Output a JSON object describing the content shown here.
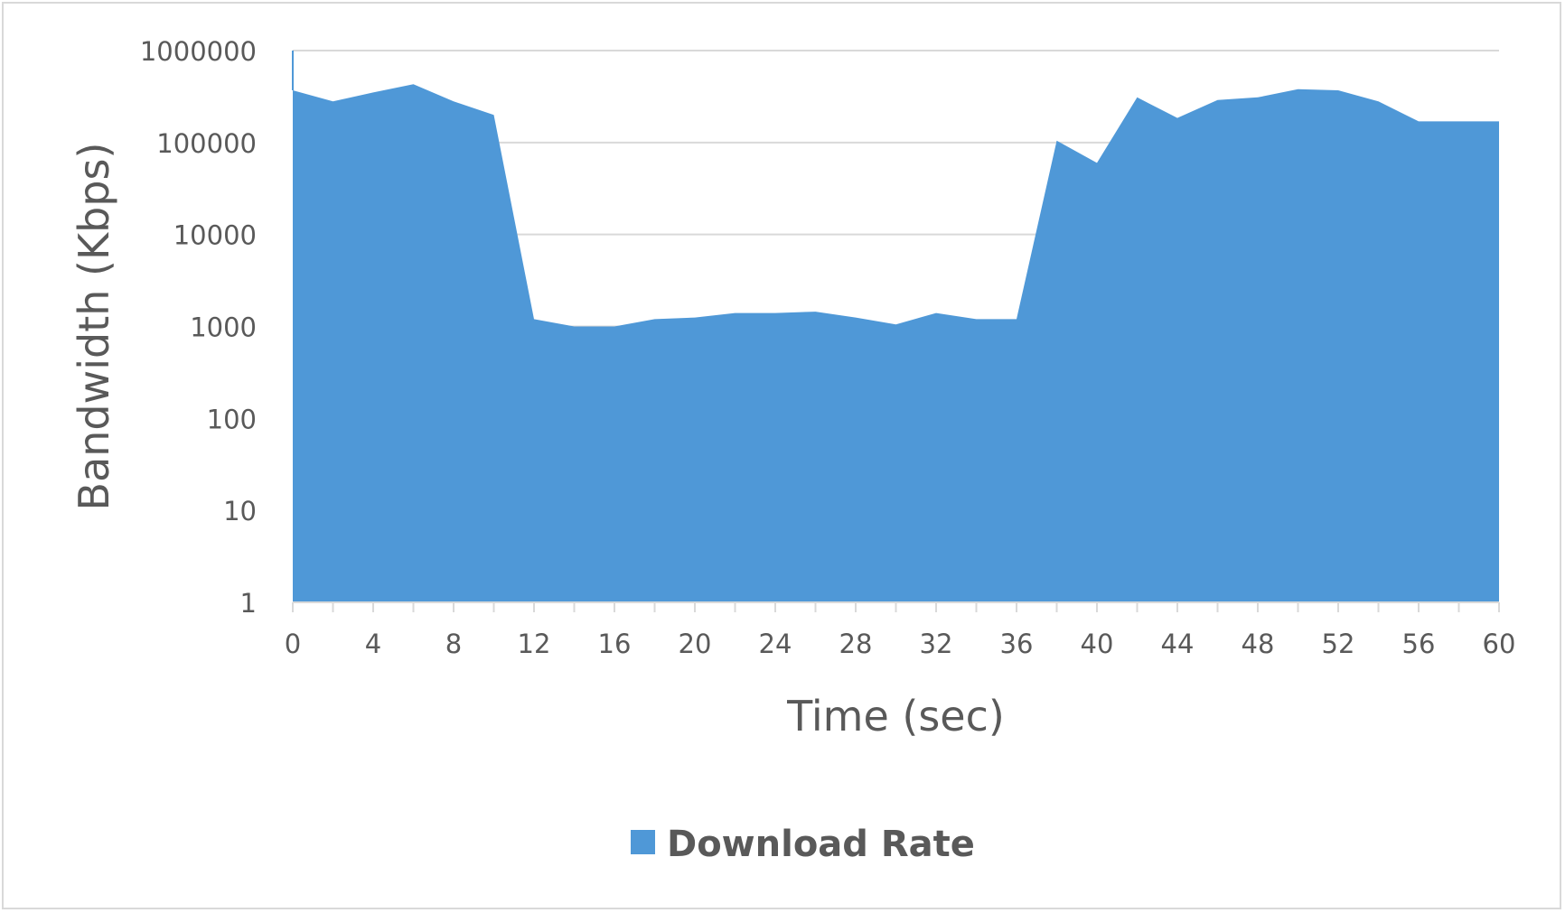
{
  "chart_data": {
    "type": "area",
    "xlabel": "Time (sec)",
    "ylabel": "Bandwidth (Kbps)",
    "y_scale": "log",
    "ylim": [
      1,
      1000000
    ],
    "xlim": [
      0,
      60
    ],
    "y_ticks": [
      1,
      10,
      100,
      1000,
      10000,
      100000,
      1000000
    ],
    "y_tick_labels": [
      "1",
      "10",
      "100",
      "1000",
      "10000",
      "100000",
      "1000000"
    ],
    "x_ticks": [
      0,
      4,
      8,
      12,
      16,
      20,
      24,
      28,
      32,
      36,
      40,
      44,
      48,
      52,
      56,
      60
    ],
    "x_tick_labels": [
      "0",
      "4",
      "8",
      "12",
      "16",
      "20",
      "24",
      "28",
      "32",
      "36",
      "40",
      "44",
      "48",
      "52",
      "56",
      "60"
    ],
    "grid": "horizontal",
    "legend_position": "bottom",
    "colors": {
      "series": "#4f98d7",
      "grid": "#d9d9d9",
      "text": "#595959"
    },
    "series": [
      {
        "name": "Download Rate",
        "x": [
          0,
          2,
          4,
          6,
          8,
          10,
          12,
          14,
          16,
          18,
          20,
          22,
          24,
          26,
          28,
          30,
          32,
          34,
          36,
          38,
          40,
          42,
          44,
          46,
          48,
          50,
          52,
          54,
          56,
          58,
          60
        ],
        "values": [
          370000,
          280000,
          350000,
          430000,
          280000,
          200000,
          1200,
          1000,
          1000,
          1200,
          1250,
          1400,
          1400,
          1450,
          1250,
          1050,
          1400,
          1200,
          1200,
          105000,
          60000,
          310000,
          185000,
          290000,
          310000,
          380000,
          370000,
          280000,
          170000,
          170000,
          170000
        ]
      }
    ]
  }
}
